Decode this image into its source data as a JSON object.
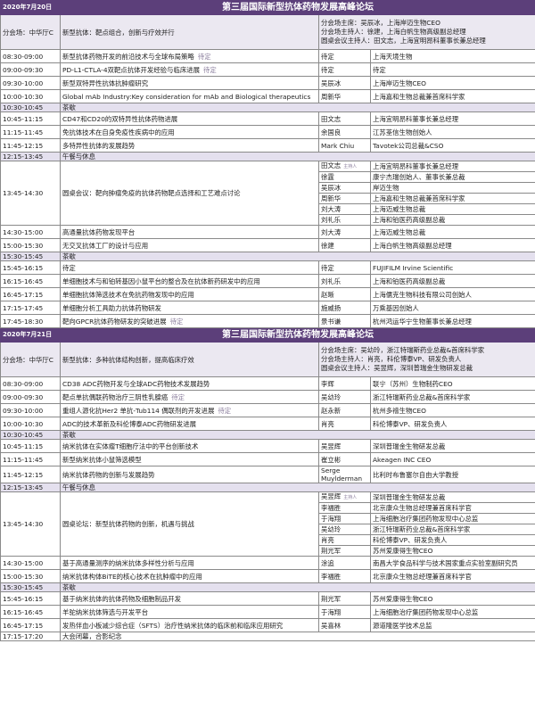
{
  "days": [
    {
      "date": "2020年7月20日",
      "title": "第三届国际新型抗体药物发展高峰论坛",
      "venue": "分会场：中华厅C",
      "theme": "新型抗体：靶点组合，创新与疗效并行",
      "hosts": [
        "分会场主席：吴辰冰，上海岸迈生物CEO",
        "分会场主持人：徐建，上海白帆生物高级副总经理",
        "圆桌会议主持人：田文志，上海宜明昂科董事长兼总经理"
      ],
      "rows": [
        {
          "time": "08:30-09:00",
          "topic": "新型抗体药物开发的前沿技术与全球布局策略",
          "tbd": "待定",
          "speaker": "待定",
          "org": "上海天境生物"
        },
        {
          "time": "09:00-09:30",
          "topic": "PD-L1-CTLA-4双靶点抗体开发经验与临床进展",
          "tbd": "待定",
          "speaker": "待定",
          "org": "待定"
        },
        {
          "time": "09:30-10:00",
          "topic": "新型双特异性抗体抗肿瘤研究",
          "speaker": "吴辰冰",
          "org": "上海岸迈生物CEO"
        },
        {
          "time": "10:00-10:30",
          "topic": "Global mAb Industry:Key consideration for mAb and Biological therapeutics",
          "speaker": "周新华",
          "org": "上海嘉和生物总裁兼首席科学家"
        },
        {
          "time": "10:30-10:45",
          "break": "茶歇"
        },
        {
          "time": "10:45-11:15",
          "topic": "CD47和CD20的双特异性抗体药物进展",
          "speaker": "田文志",
          "org": "上海宜明昂科董事长兼总经理"
        },
        {
          "time": "11:15-11:45",
          "topic": "免抗体技术在自身免疫性疾病中的应用",
          "speaker": "余国良",
          "org": "江苏荃信生物创始人"
        },
        {
          "time": "11:45-12:15",
          "topic": "多特异性抗体的发展趋势",
          "speaker": "Mark Chiu",
          "org": "Tavotek公司总裁&CSO"
        },
        {
          "time": "12:15-13:45",
          "break": "午餐与休息"
        },
        {
          "time": "13:45-14:30",
          "topic": "圆桌会议：靶向肿瘤免疫的抗体药物靶点选择和工艺难点讨论",
          "panel": [
            {
              "name": "田文志",
              "role": "主持人",
              "org": "上海宜明昂科董事长兼总经理"
            },
            {
              "name": "徐霆",
              "org": "康宁杰瑞创始人、董事长兼总裁"
            },
            {
              "name": "吴辰冰",
              "org": "岸迈生物"
            },
            {
              "name": "周新华",
              "org": "上海嘉和生物总裁兼首席科学家"
            },
            {
              "name": "刘大涛",
              "org": "上海迈威生物总裁"
            },
            {
              "name": "刘礼乐",
              "org": "上海和铂医药高级副总裁"
            }
          ]
        },
        {
          "time": "14:30-15:00",
          "topic": "高通量抗体药物发现平台",
          "speaker": "刘大涛",
          "org": "上海迈威生物总裁"
        },
        {
          "time": "15:00-15:30",
          "topic": "无交叉抗体工厂的设计与应用",
          "speaker": "徐建",
          "org": "上海白帆生物高级副总经理"
        },
        {
          "time": "15:30-15:45",
          "break": "茶歇"
        },
        {
          "time": "15:45-16:15",
          "topic": "待定",
          "speaker": "待定",
          "org": "FUJIFILM Irvine Scientific"
        },
        {
          "time": "16:15-16:45",
          "topic": "单细胞技术与和铂转基因小鼠平台的整合及在抗体新药研发中的应用",
          "speaker": "刘礼乐",
          "org": "上海和铂医药高级副总裁"
        },
        {
          "time": "16:45-17:15",
          "topic": "单细胞抗体筛选技术在免抗药物发现中的应用",
          "speaker": "赵晰",
          "org": "上海儒克生物科技有限公司创始人"
        },
        {
          "time": "17:15-17:45",
          "topic": "单细胞分析工具助力抗体药物研发",
          "speaker": "施威扬",
          "org": "万乘基因创始人"
        },
        {
          "time": "17:45-18:30",
          "topic": "靶向GPCR抗体药物研发的突破进展",
          "tbd": "待定",
          "speaker": "景书谦",
          "org": "杭州鸿运华宁生物董事长兼总经理"
        }
      ]
    },
    {
      "date": "2020年7月21日",
      "title": "第三届国际新型抗体药物发展高峰论坛",
      "venue": "分会场：中华厅C",
      "theme": "新型抗体：多种抗体结构创新，提高临床疗效",
      "hosts": [
        "分会场主席：吴幼玲，浙江特瑞斯药业总裁&首席科学家",
        "分会场主持人：肖亮，科伦博泰VP、研发负责人",
        "圆桌会议主持人：吴昱辉，深圳普瑞金生物研发总裁"
      ],
      "rows": [
        {
          "time": "08:30-09:00",
          "topic": "CD38 ADC药物开发与全球ADC药物技术发展趋势",
          "speaker": "李辉",
          "org": "联宁（苏州）生物制药CEO"
        },
        {
          "time": "09:00-09:30",
          "topic": "靶点单抗偶联药物治疗三阴性乳腺癌",
          "tbd": "待定",
          "speaker": "吴幼玲",
          "org": "浙江特瑞斯药业总裁&首席科学家"
        },
        {
          "time": "09:30-10:00",
          "topic": "重组人源化抗Her2 单抗-Tub114 偶联剂的开发进展",
          "tbd": "待定",
          "speaker": "赵永新",
          "org": "杭州多禧生物CEO"
        },
        {
          "time": "10:00-10:30",
          "topic": "ADC的技术革新及科伦博泰ADC药物研发进展",
          "speaker": "肖亮",
          "org": "科伦博泰VP、研发负责人"
        },
        {
          "time": "10:30-10:45",
          "break": "茶歇"
        },
        {
          "time": "10:45-11:15",
          "topic": "纳米抗体在实体瘤T细胞疗法中的平台创新技术",
          "speaker": "吴昱辉",
          "org": "深圳普瑞金生物研发总裁"
        },
        {
          "time": "11:15-11:45",
          "topic": "新型纳米抗体小鼠筛选模型",
          "speaker": "崔立彬",
          "org": "Akeagen INC CEO"
        },
        {
          "time": "11:45-12:15",
          "topic": "纳米抗体药物的创新与发展趋势",
          "speaker": "Serge Muylderman",
          "org": "比利时布鲁塞尔自由大学教授"
        },
        {
          "time": "12:15-13:45",
          "break": "午餐与休息"
        },
        {
          "time": "13:45-14:30",
          "topic": "圆桌论坛：新型抗体药物的创新，机遇与挑战",
          "panel": [
            {
              "name": "吴昱辉",
              "role": "主持人",
              "org": "深圳普瑞金生物研发总裁"
            },
            {
              "name": "李福胜",
              "org": "北京康众生物总经理兼首席科学官"
            },
            {
              "name": "于海翔",
              "org": "上海细胞治疗集团药物发现中心总监"
            },
            {
              "name": "吴幼玲",
              "org": "浙江特瑞斯药业总裁&首席科学家"
            },
            {
              "name": "肖亮",
              "org": "科伦博泰VP、研发负责人"
            },
            {
              "name": "荆光军",
              "org": "苏州爱康得生物CEO"
            }
          ]
        },
        {
          "time": "14:30-15:00",
          "topic": "基于高通量测序的纳米抗体多样性分析与应用",
          "speaker": "涂追",
          "org": "南昌大学食品科学与技术国家重点实验室副研究员"
        },
        {
          "time": "15:00-15:30",
          "topic": "纳米抗体构体BiTE的核心技术在抗肿瘤中的应用",
          "speaker": "李福胜",
          "org": "北京康众生物总经理兼首席科学官"
        },
        {
          "time": "15:30-15:45",
          "break": "茶歇"
        },
        {
          "time": "15:45-16:15",
          "topic": "基于纳米抗体的抗体药物及细胞制品开发",
          "speaker": "荆光军",
          "org": "苏州爱康得生物CEO"
        },
        {
          "time": "16:15-16:45",
          "topic": "羊驼纳米抗体筛选与开发平台",
          "speaker": "于海翔",
          "org": "上海细胞治疗集团药物发现中心总监"
        },
        {
          "time": "16:45-17:15",
          "topic": "发热伴血小板减少综合症（SFTS）治疗性纳米抗体的临床前和临床应用研究",
          "speaker": "吴喜林",
          "org": "源道隆医学技术总监"
        },
        {
          "time": "17:15-17:20",
          "break": "大会闭幕，合影纪念",
          "open": true
        }
      ]
    }
  ],
  "colors": {
    "header_bg": "#5c3f7a",
    "session_bg": "#ebe8f1",
    "break_bg": "#e4e0ee",
    "tbd_text": "#8a7d9c"
  }
}
